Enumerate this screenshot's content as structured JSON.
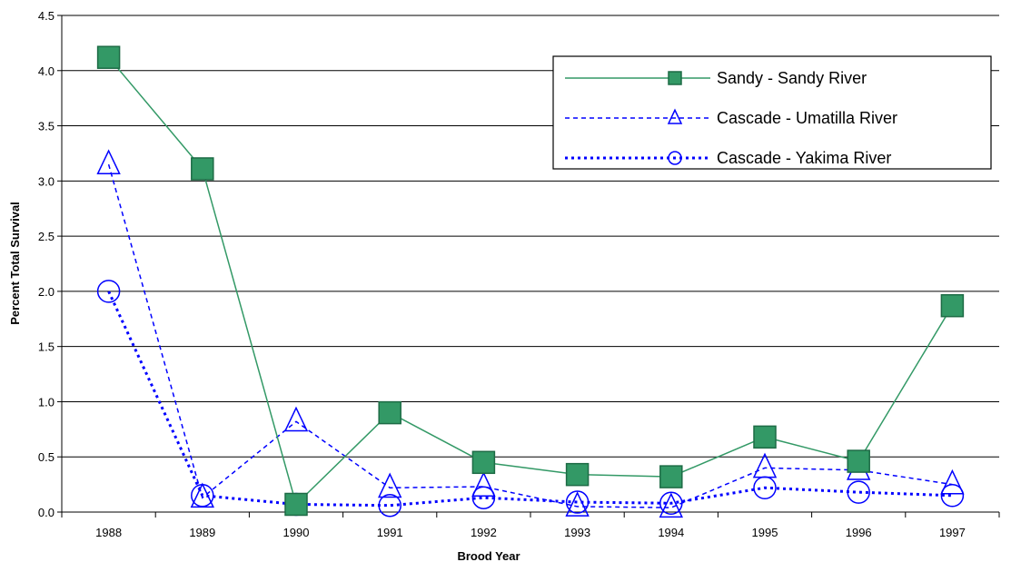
{
  "chart_data": {
    "type": "line",
    "title": "",
    "xlabel": "Brood Year",
    "ylabel": "Percent Total Survival",
    "x": [
      "1988",
      "1989",
      "1990",
      "1991",
      "1992",
      "1993",
      "1994",
      "1995",
      "1996",
      "1997"
    ],
    "ylim": [
      0,
      4.5
    ],
    "yticks": [
      "0.0",
      "0.5",
      "1.0",
      "1.5",
      "2.0",
      "2.5",
      "3.0",
      "3.5",
      "4.0",
      "4.5"
    ],
    "grid": "horizontal",
    "legend": "top-right",
    "series": [
      {
        "name": "Sandy - Sandy River",
        "values": [
          4.12,
          3.11,
          0.07,
          0.9,
          0.45,
          0.34,
          0.32,
          0.68,
          0.46,
          1.87
        ],
        "color": "#339966",
        "marker": "square",
        "line": "solid"
      },
      {
        "name": "Cascade - Umatilla River",
        "values": [
          3.15,
          0.13,
          0.82,
          0.22,
          0.23,
          0.05,
          0.04,
          0.4,
          0.38,
          0.25
        ],
        "color": "#0000ff",
        "marker": "triangle",
        "line": "dashed"
      },
      {
        "name": "Cascade - Yakima River",
        "values": [
          2.0,
          0.15,
          0.07,
          0.06,
          0.13,
          0.09,
          0.08,
          0.22,
          0.18,
          0.15
        ],
        "color": "#0000ff",
        "marker": "circle",
        "line": "dotted"
      }
    ]
  }
}
